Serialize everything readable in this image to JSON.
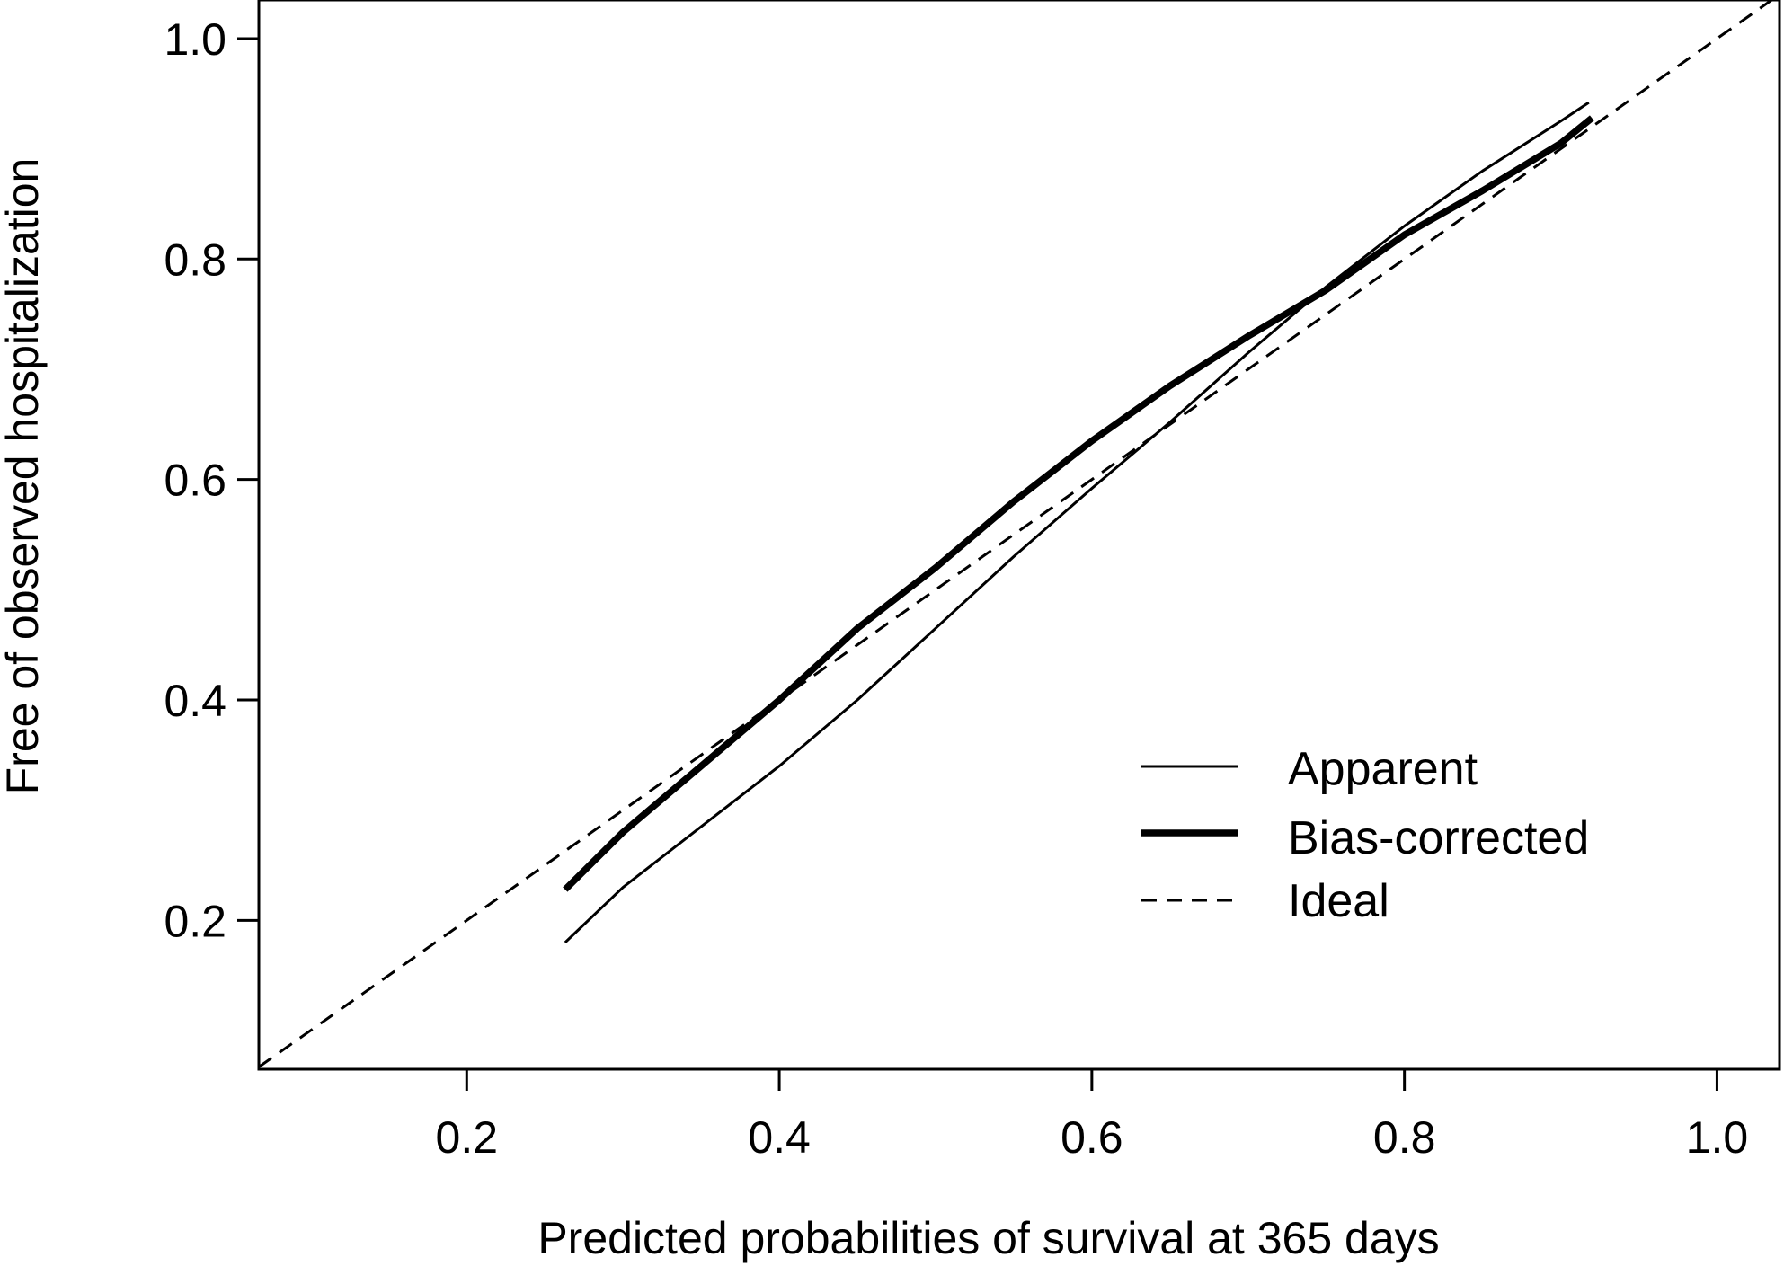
{
  "chart_data": {
    "type": "line",
    "xlabel": "Predicted probabilities of survival at 365 days",
    "ylabel": "Free of observed hospitalization",
    "xlim": [
      0.067,
      1.04
    ],
    "ylim": [
      0.065,
      1.035
    ],
    "x_ticks": [
      0.2,
      0.4,
      0.6,
      0.8,
      1.0
    ],
    "x_tick_labels": [
      "0.2",
      "0.4",
      "0.6",
      "0.8",
      "1.0"
    ],
    "y_ticks": [
      0.2,
      0.4,
      0.6,
      0.8,
      1.0
    ],
    "y_tick_labels": [
      "0.2",
      "0.4",
      "0.6",
      "0.8",
      "1.0"
    ],
    "grid": false,
    "legend_position": "bottom-right",
    "series": [
      {
        "name": "Apparent",
        "style": "thin",
        "x": [
          0.263,
          0.3,
          0.35,
          0.4,
          0.45,
          0.5,
          0.55,
          0.6,
          0.65,
          0.7,
          0.75,
          0.8,
          0.85,
          0.9,
          0.918
        ],
        "y": [
          0.18,
          0.23,
          0.285,
          0.34,
          0.4,
          0.465,
          0.53,
          0.592,
          0.652,
          0.715,
          0.775,
          0.83,
          0.88,
          0.925,
          0.942
        ]
      },
      {
        "name": "Bias-corrected",
        "style": "thick",
        "x": [
          0.263,
          0.3,
          0.35,
          0.4,
          0.45,
          0.5,
          0.55,
          0.6,
          0.65,
          0.7,
          0.75,
          0.8,
          0.85,
          0.9,
          0.92
        ],
        "y": [
          0.228,
          0.28,
          0.34,
          0.4,
          0.465,
          0.52,
          0.58,
          0.635,
          0.685,
          0.73,
          0.772,
          0.822,
          0.862,
          0.905,
          0.928
        ]
      },
      {
        "name": "Ideal",
        "style": "dashed",
        "x": [
          0.067,
          1.04
        ],
        "y": [
          0.067,
          1.04
        ]
      }
    ]
  }
}
